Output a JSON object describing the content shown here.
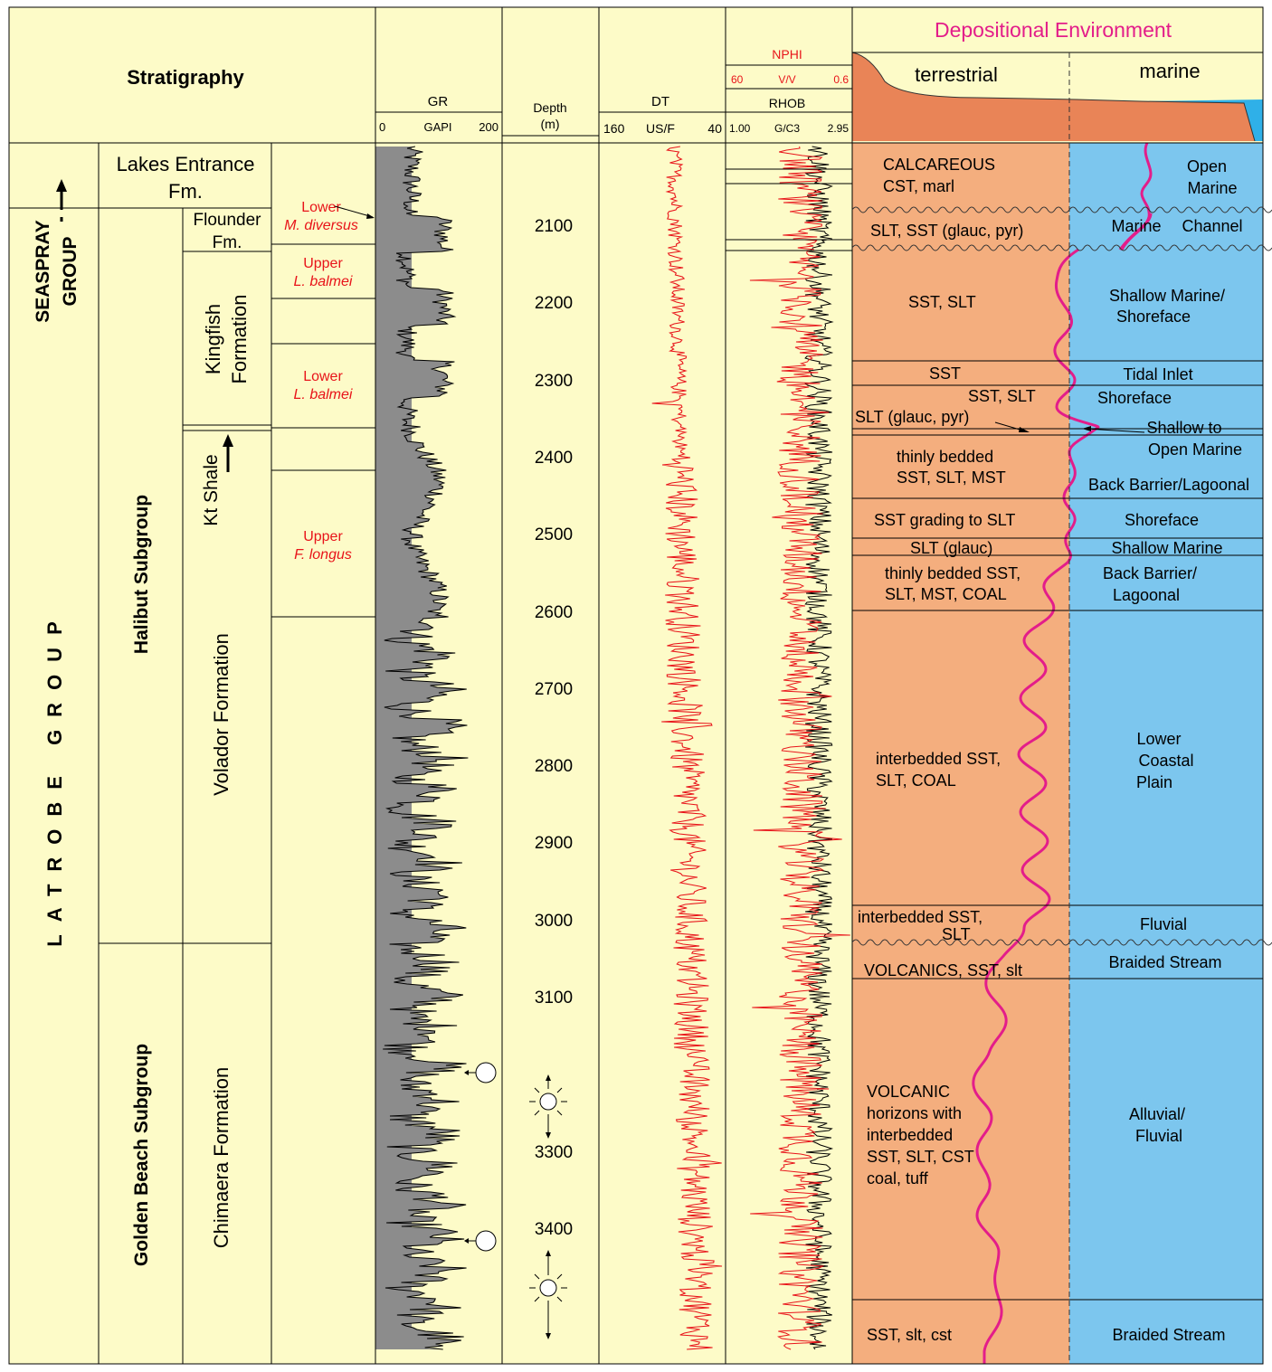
{
  "header": {
    "stratigraphy": "Stratigraphy",
    "gr": {
      "name": "GR",
      "min": "0",
      "unit": "GAPI",
      "max": "200"
    },
    "depth": {
      "line1": "Depth",
      "line2": "(m)"
    },
    "dt": {
      "name": "DT",
      "left": "160",
      "unit": "US/F",
      "right": "40"
    },
    "nphi": {
      "name": "NPHI",
      "left": "60",
      "unit": "V/V",
      "right": "0.6"
    },
    "rhob": {
      "name": "RHOB",
      "left": "1.00",
      "unit": "G/C3",
      "right": "2.95"
    },
    "depositional": {
      "title": "Depositional Environment",
      "terrestrial": "terrestrial",
      "marine": "marine"
    }
  },
  "groups": {
    "seaspray_line1": "SEASPRAY",
    "seaspray_line2": "GROUP",
    "latrobe": "LATROBE GROUP"
  },
  "subgroups": {
    "lakes_line1": "Lakes Entrance",
    "lakes_line2": "Fm.",
    "halibut": "Halibut Subgroup",
    "golden": "Golden Beach Subgroup"
  },
  "formations": {
    "flounder_line1": "Flounder",
    "flounder_line2": "Fm.",
    "kingfish_line1": "Kingfish",
    "kingfish_line2": "Formation",
    "kt": "Kt Shale",
    "volador": "Volador Formation",
    "chimaera": "Chimaera Formation"
  },
  "zones": [
    {
      "a": "Lower",
      "b": "M. diversus"
    },
    {
      "a": "Upper",
      "b": "L. balmei"
    },
    {
      "a": "Lower",
      "b": "L. balmei"
    },
    {
      "a": "Upper",
      "b": "F. longus"
    }
  ],
  "depth_ticks": [
    "2100",
    "2200",
    "2300",
    "2400",
    "2500",
    "2600",
    "2700",
    "2800",
    "2900",
    "3000",
    "3100",
    "3300",
    "3400"
  ],
  "lithology": {
    "calc1": "CALCAREOUS",
    "calc2": "CST, marl",
    "slt_glauc": "SLT, SST (glauc, pyr)",
    "sst_slt": "SST, SLT",
    "sst": "SST",
    "sst_slt2": "SST, SLT",
    "slt_glauc_pyr": "SLT (glauc, pyr)",
    "thin1": "thinly bedded",
    "thin2": "SST, SLT, MST",
    "grading": "SST grading to SLT",
    "slt_glauc2": "SLT (glauc)",
    "thinc1": "thinly bedded SST,",
    "thinc2": "SLT, MST, COAL",
    "inter1": "interbedded SST,",
    "inter2": "SLT, COAL",
    "inter3": "interbedded SST,",
    "inter4": "SLT",
    "volc": "VOLCANICS, SST, slt",
    "vh1": "VOLCANIC",
    "vh2": "horizons with",
    "vh3": "interbedded",
    "vh4": "SST, SLT, CST",
    "vh5": "coal, tuff",
    "last": "SST, slt, cst"
  },
  "environments": {
    "open1": "Open",
    "open2": "Marine",
    "marine": "Marine",
    "channel": "Channel",
    "shallow1": "Shallow Marine/",
    "shallow2": "Shoreface",
    "tidal": "Tidal Inlet",
    "shoreface": "Shoreface",
    "sto1": "Shallow to",
    "sto2": "Open Marine",
    "back": "Back Barrier/Lagoonal",
    "shoreface2": "Shoreface",
    "shallow_marine": "Shallow Marine",
    "bb1": "Back Barrier/",
    "bb2": "Lagoonal",
    "lcp1": "Lower",
    "lcp2": "Coastal",
    "lcp3": "Plain",
    "fluvial": "Fluvial",
    "braided": "Braided Stream",
    "al1": "Alluvial/",
    "al2": "Fluvial",
    "braided2": "Braided Stream"
  },
  "colors": {
    "panel": "#fdfbc8",
    "terrestrial": "#f4ae7e",
    "marine": "#7cc6ee",
    "gr_fill": "#8c8c8c",
    "red": "#e8141a",
    "magenta": "#e31d8a",
    "orange_header": "#e98457",
    "sea": "#2fb0e8"
  }
}
